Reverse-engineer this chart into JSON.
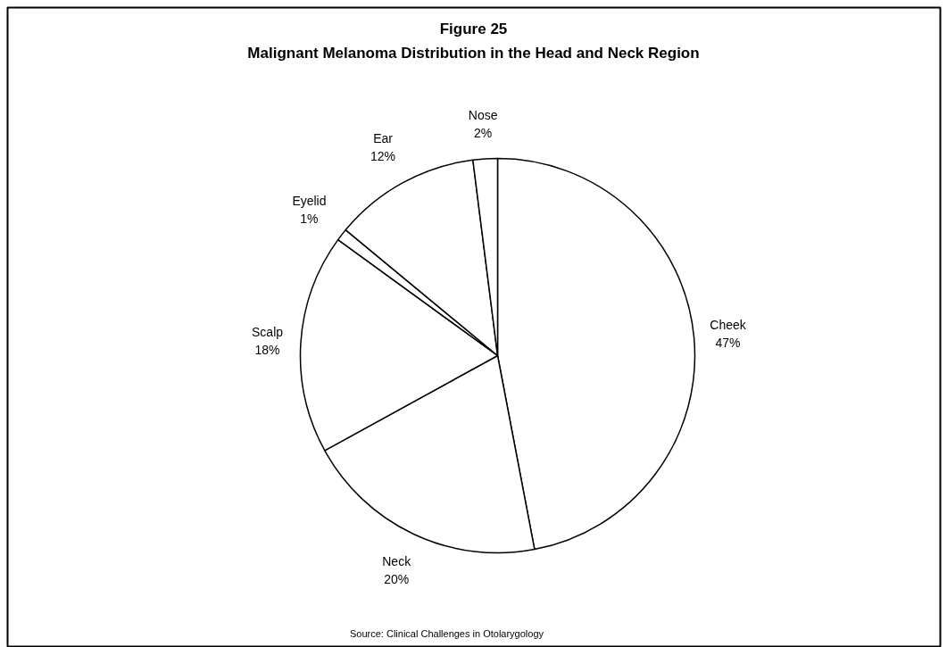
{
  "chart_data": {
    "type": "pie",
    "title": "Figure 25",
    "subtitle": "Malignant Melanoma Distribution in the Head and Neck Region",
    "categories": [
      "Cheek",
      "Neck",
      "Scalp",
      "Eyelid",
      "Ear",
      "Nose"
    ],
    "values": [
      47,
      20,
      18,
      1,
      12,
      2
    ],
    "value_labels": [
      "47%",
      "20%",
      "18%",
      "1%",
      "12%",
      "2%"
    ],
    "colors": [
      "#ffffff",
      "#ffffff",
      "#ffffff",
      "#ffffff",
      "#ffffff",
      "#ffffff"
    ],
    "annotations": [
      "Source: Clinical Challenges in Otolarygology"
    ]
  }
}
